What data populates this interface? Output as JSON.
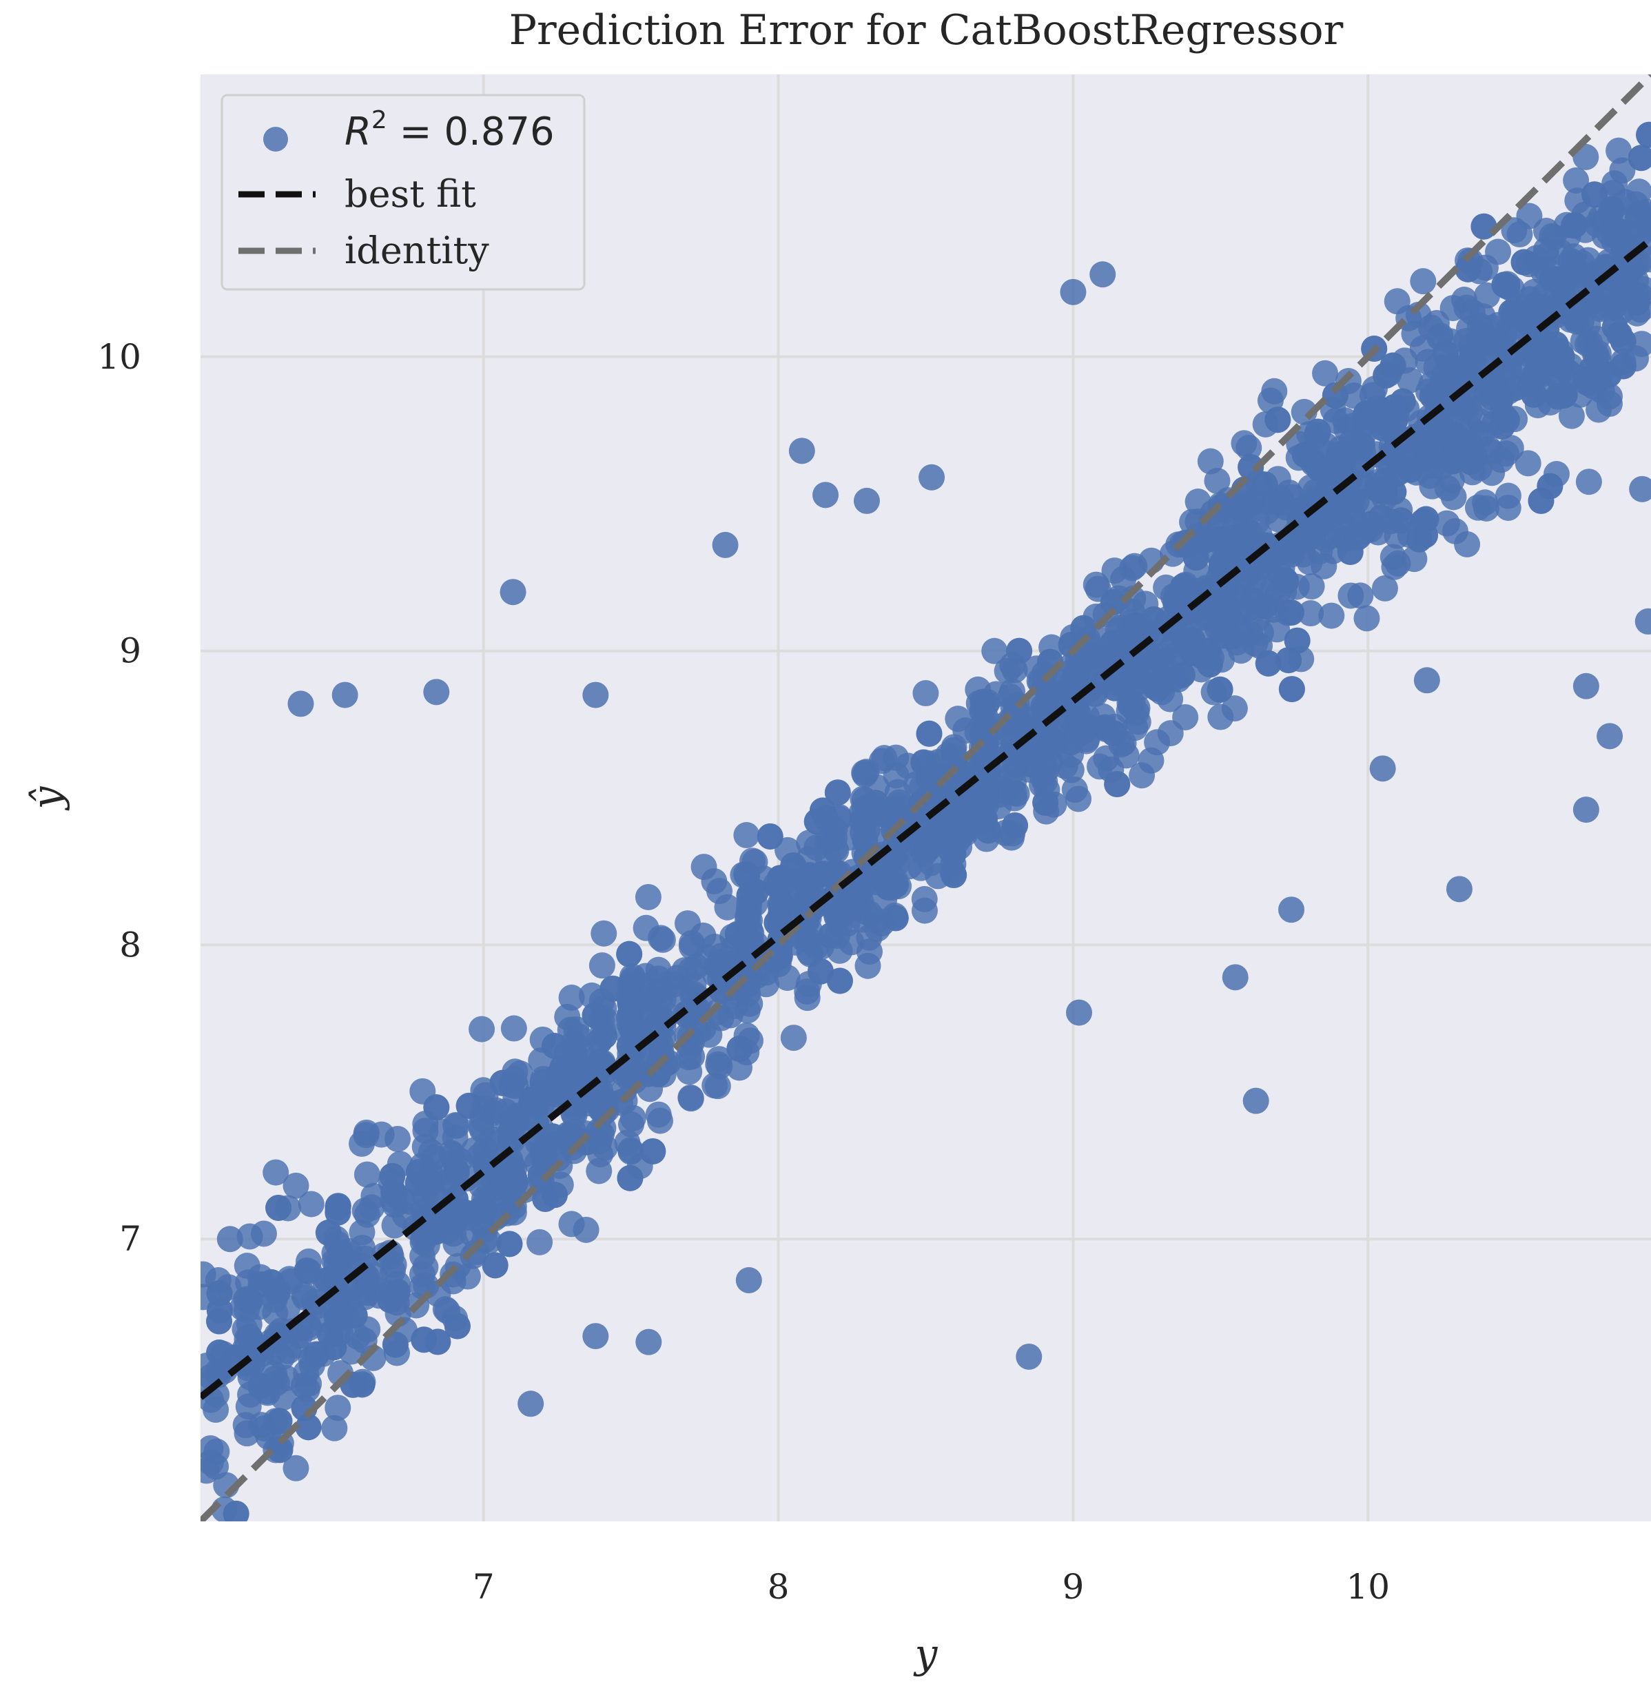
{
  "chart_data": {
    "type": "scatter",
    "title": "Prediction Error for CatBoostRegressor",
    "xlabel": "y",
    "ylabel": "ŷ",
    "xlim": [
      6.04,
      10.96
    ],
    "ylim": [
      6.04,
      10.96
    ],
    "xticks": [
      7,
      8,
      9,
      10
    ],
    "yticks": [
      7,
      8,
      9,
      10
    ],
    "xtick_labels": [
      "7",
      "8",
      "9",
      "10"
    ],
    "ytick_labels": [
      "7",
      "8",
      "9",
      "10"
    ],
    "grid": true,
    "legend_position": "top-left",
    "legend": {
      "r2_label": "R",
      "r2_sup": "2",
      "r2_value": " = 0.876",
      "best_fit_label": "best fit",
      "identity_label": "identity"
    },
    "best_fit": {
      "slope": 0.8,
      "intercept": 1.63
    },
    "identity": {
      "slope": 1,
      "intercept": 0
    },
    "colors": {
      "points": "#4c72b0",
      "best_fit": "#111111",
      "identity": "#6f6f6f",
      "plot_background": "#eaeaf2",
      "grid": "#dcdcdc"
    },
    "outliers": [
      [
        6.38,
        8.82
      ],
      [
        6.53,
        8.85
      ],
      [
        6.84,
        8.86
      ],
      [
        7.1,
        9.2
      ],
      [
        7.38,
        8.85
      ],
      [
        7.82,
        9.36
      ],
      [
        8.08,
        9.68
      ],
      [
        8.16,
        9.53
      ],
      [
        8.3,
        9.51
      ],
      [
        8.52,
        9.59
      ],
      [
        8.85,
        6.6
      ],
      [
        9.02,
        7.77
      ],
      [
        9.55,
        7.89
      ],
      [
        9.62,
        7.47
      ],
      [
        9.74,
        8.12
      ],
      [
        10.31,
        8.19
      ],
      [
        10.74,
        8.46
      ],
      [
        10.74,
        8.88
      ],
      [
        10.82,
        8.71
      ],
      [
        10.95,
        9.1
      ],
      [
        10.93,
        9.55
      ],
      [
        6.14,
        7.0
      ],
      [
        7.38,
        6.67
      ],
      [
        7.56,
        6.65
      ],
      [
        7.16,
        6.44
      ],
      [
        9.0,
        10.22
      ],
      [
        9.1,
        10.28
      ],
      [
        7.9,
        6.86
      ],
      [
        10.05,
        8.6
      ],
      [
        10.2,
        8.9
      ]
    ],
    "cluster": {
      "count": 2400,
      "x_range": [
        6.04,
        10.96
      ],
      "trend": "y_hat ≈ 0.8·y + 1.63"
    }
  }
}
